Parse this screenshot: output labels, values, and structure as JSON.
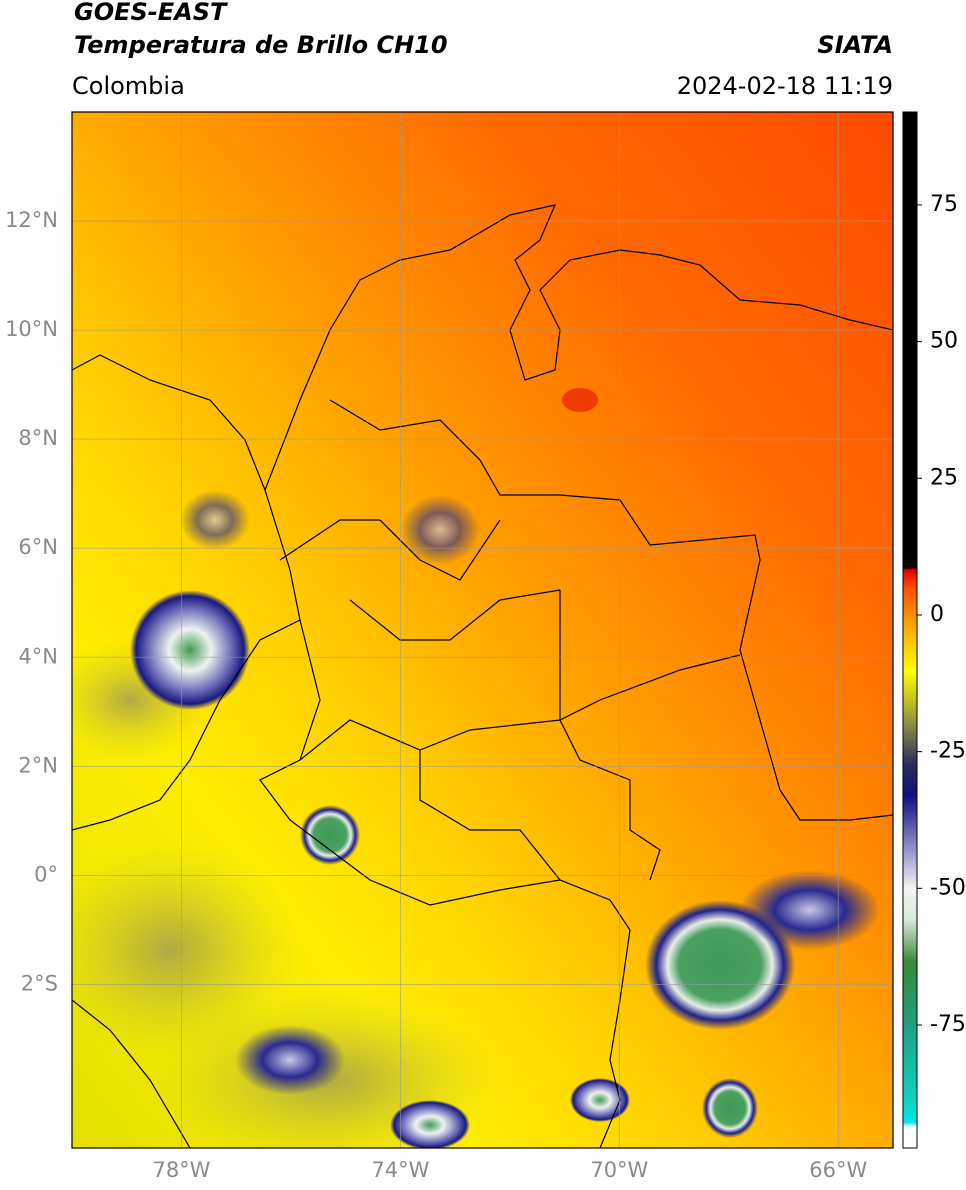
{
  "header": {
    "title": "GOES-EAST",
    "subtitle": "Temperatura de Brillo CH10",
    "region": "Colombia",
    "source": "SIATA",
    "timestamp": "2024-02-18 11:19"
  },
  "map": {
    "lonlim": [
      -80,
      -65
    ],
    "latlim": [
      -5,
      14
    ],
    "grid": true,
    "xticks": [
      {
        "value": -78,
        "label": "78°W"
      },
      {
        "value": -74,
        "label": "74°W"
      },
      {
        "value": -70,
        "label": "70°W"
      },
      {
        "value": -66,
        "label": "66°W"
      }
    ],
    "yticks": [
      {
        "value": 12,
        "label": "12°N"
      },
      {
        "value": 10,
        "label": "10°N"
      },
      {
        "value": 8,
        "label": "8°N"
      },
      {
        "value": 6,
        "label": "6°N"
      },
      {
        "value": 4,
        "label": "4°N"
      },
      {
        "value": 2,
        "label": "2°N"
      },
      {
        "value": 0,
        "label": "0°"
      },
      {
        "value": -2,
        "label": "2°S"
      }
    ]
  },
  "colorbar": {
    "lim": [
      -97.5,
      92
    ],
    "ticks": [
      75,
      50,
      25,
      0,
      -25,
      -50,
      -75
    ]
  }
}
